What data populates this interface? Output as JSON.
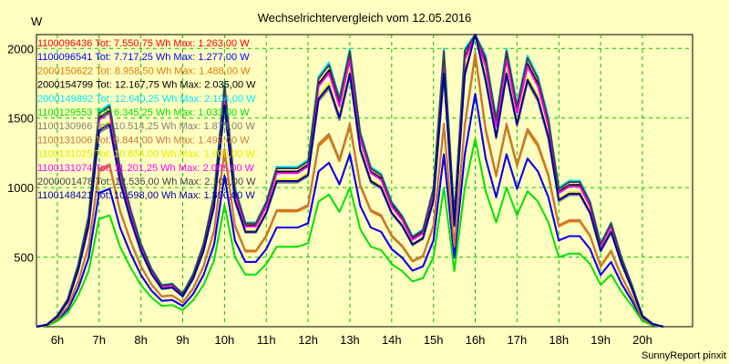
{
  "chart_data": {
    "type": "line",
    "title": "Wechselrichtervergleich vom 12.05.2016",
    "unit_label": "W",
    "footer": "SunnyReport pinxit",
    "ylim": [
      0,
      2100
    ],
    "yticks": [
      {
        "value": 500,
        "label": "500"
      },
      {
        "value": 1000,
        "label": "1000"
      },
      {
        "value": 1500,
        "label": "1500"
      },
      {
        "value": 2000,
        "label": "2000"
      }
    ],
    "xlim": [
      5.5,
      21.2
    ],
    "xticks": [
      {
        "value": 6,
        "label": "6h"
      },
      {
        "value": 7,
        "label": "7h"
      },
      {
        "value": 8,
        "label": "8h"
      },
      {
        "value": 9,
        "label": "9h"
      },
      {
        "value": 10,
        "label": "10h"
      },
      {
        "value": 11,
        "label": "11h"
      },
      {
        "value": 12,
        "label": "12h"
      },
      {
        "value": 13,
        "label": "13h"
      },
      {
        "value": 14,
        "label": "14h"
      },
      {
        "value": 15,
        "label": "15h"
      },
      {
        "value": 16,
        "label": "16h"
      },
      {
        "value": 17,
        "label": "17h"
      },
      {
        "value": 18,
        "label": "18h"
      },
      {
        "value": 19,
        "label": "19h"
      },
      {
        "value": 20,
        "label": "20h"
      }
    ],
    "grid": true,
    "legend_position": "top-left",
    "x": [
      5.5,
      5.75,
      6.0,
      6.25,
      6.5,
      6.75,
      7.0,
      7.25,
      7.5,
      7.75,
      8.0,
      8.25,
      8.5,
      8.75,
      9.0,
      9.25,
      9.5,
      9.75,
      10.0,
      10.25,
      10.5,
      10.75,
      11.0,
      11.25,
      11.5,
      11.75,
      12.0,
      12.25,
      12.5,
      12.75,
      13.0,
      13.25,
      13.5,
      13.75,
      14.0,
      14.25,
      14.5,
      14.75,
      15.0,
      15.25,
      15.5,
      15.75,
      16.0,
      16.25,
      16.5,
      16.75,
      17.0,
      17.25,
      17.5,
      17.75,
      18.0,
      18.25,
      18.5,
      18.75,
      19.0,
      19.25,
      19.5,
      19.75,
      20.0,
      20.25,
      20.5
    ],
    "series": [
      {
        "name": "1100096436 Tot: 7.550,75 Wh Max: 1.263,00 W",
        "color": "#ff0000",
        "scale": 0.62,
        "values": [
          0,
          15,
          80,
          200,
          450,
          800,
          1550,
          1600,
          1150,
          850,
          600,
          420,
          300,
          310,
          240,
          380,
          600,
          950,
          1750,
          1000,
          750,
          750,
          900,
          1150,
          1150,
          1150,
          1200,
          1800,
          1900,
          1650,
          2000,
          1400,
          1150,
          1100,
          900,
          800,
          650,
          700,
          1000,
          2000,
          800,
          2000,
          2700,
          1950,
          1500,
          2000,
          1600,
          1950,
          1800,
          1500,
          1000,
          1050,
          1050,
          900,
          600,
          750,
          500,
          300,
          80,
          20,
          0
        ]
      },
      {
        "name": "1100096541 Tot: 7.717,25 Wh Max: 1.277,00 W",
        "color": "#0000ff",
        "scale": 0.62,
        "values": [
          0,
          15,
          80,
          200,
          450,
          800,
          1550,
          1600,
          1150,
          850,
          600,
          420,
          300,
          310,
          240,
          380,
          600,
          950,
          1750,
          1000,
          750,
          750,
          900,
          1150,
          1150,
          1150,
          1200,
          1800,
          1900,
          1650,
          2000,
          1400,
          1150,
          1100,
          900,
          800,
          650,
          700,
          1000,
          2000,
          800,
          2000,
          2700,
          1950,
          1500,
          2000,
          1600,
          1950,
          1800,
          1500,
          1000,
          1050,
          1050,
          900,
          600,
          750,
          500,
          300,
          80,
          20,
          0
        ]
      },
      {
        "name": "2000150622 Tot: 8.958,50 Wh Max: 1.488,00 W",
        "color": "#e07800",
        "scale": 0.72,
        "values": [
          0,
          15,
          80,
          200,
          450,
          800,
          1550,
          1600,
          1150,
          850,
          600,
          420,
          300,
          310,
          240,
          380,
          600,
          950,
          1750,
          1000,
          750,
          750,
          900,
          1150,
          1150,
          1150,
          1200,
          1800,
          1900,
          1650,
          2000,
          1400,
          1150,
          1100,
          900,
          800,
          650,
          700,
          1000,
          2000,
          800,
          2000,
          2700,
          1950,
          1500,
          2000,
          1600,
          1950,
          1800,
          1500,
          1000,
          1050,
          1050,
          900,
          600,
          750,
          500,
          300,
          80,
          20,
          0
        ]
      },
      {
        "name": "2000154799 Tot: 12.167,75 Wh Max: 2.035,00 W",
        "color": "#000000",
        "scale": 0.97,
        "values": [
          0,
          15,
          80,
          200,
          450,
          800,
          1550,
          1600,
          1150,
          850,
          600,
          420,
          300,
          310,
          240,
          380,
          600,
          950,
          1750,
          1000,
          750,
          750,
          900,
          1150,
          1150,
          1150,
          1200,
          1800,
          1900,
          1650,
          2000,
          1400,
          1150,
          1100,
          900,
          800,
          650,
          700,
          1000,
          2000,
          800,
          2000,
          2700,
          1950,
          1500,
          2000,
          1600,
          1950,
          1800,
          1500,
          1000,
          1050,
          1050,
          900,
          600,
          750,
          500,
          300,
          80,
          20,
          0
        ]
      },
      {
        "name": "2000149892 Tot: 12.640,25 Wh Max: 2.104,00 W",
        "color": "#00e0ff",
        "scale": 1.0,
        "values": [
          0,
          15,
          80,
          200,
          450,
          800,
          1550,
          1600,
          1150,
          850,
          600,
          420,
          300,
          310,
          240,
          380,
          600,
          950,
          1750,
          1000,
          750,
          750,
          900,
          1150,
          1150,
          1150,
          1200,
          1800,
          1900,
          1650,
          2000,
          1400,
          1150,
          1100,
          900,
          800,
          650,
          700,
          1000,
          2000,
          800,
          2000,
          2700,
          1950,
          1500,
          2000,
          1600,
          1950,
          1800,
          1500,
          1000,
          1050,
          1050,
          900,
          600,
          750,
          500,
          300,
          80,
          20,
          0
        ]
      },
      {
        "name": "1100129553 Tot: 6.345,25 Wh Max: 1.033,00 W",
        "color": "#00e000",
        "scale": 0.5,
        "values": [
          0,
          15,
          80,
          200,
          450,
          800,
          1550,
          1600,
          1150,
          850,
          600,
          420,
          300,
          310,
          240,
          380,
          600,
          950,
          1750,
          1000,
          750,
          750,
          900,
          1150,
          1150,
          1150,
          1200,
          1800,
          1900,
          1650,
          2000,
          1400,
          1150,
          1100,
          900,
          800,
          650,
          700,
          1000,
          2000,
          800,
          2000,
          2700,
          1950,
          1500,
          2000,
          1600,
          1950,
          1800,
          1500,
          1000,
          1050,
          1050,
          900,
          600,
          750,
          500,
          300,
          80,
          20,
          0
        ]
      },
      {
        "name": "1100130966 Tot: 10.514,25 Wh Max: 1.873,00 W",
        "color": "#808080",
        "scale": 0.9,
        "values": [
          0,
          15,
          80,
          200,
          450,
          800,
          1550,
          1600,
          1150,
          850,
          600,
          420,
          300,
          310,
          240,
          380,
          600,
          950,
          1750,
          1000,
          750,
          750,
          900,
          1150,
          1150,
          1150,
          1200,
          1800,
          1900,
          1650,
          2000,
          1400,
          1150,
          1100,
          900,
          800,
          650,
          700,
          1000,
          2000,
          800,
          2000,
          2700,
          1950,
          1500,
          2000,
          1600,
          1950,
          1800,
          1500,
          1000,
          1050,
          1050,
          900,
          600,
          750,
          500,
          300,
          80,
          20,
          0
        ]
      },
      {
        "name": "1100131006 Tot: 9.844,00 Wh Max: 1.499,00 W",
        "color": "#c87838",
        "scale": 0.73,
        "values": [
          0,
          15,
          80,
          200,
          450,
          800,
          1550,
          1600,
          1150,
          850,
          600,
          420,
          300,
          310,
          240,
          380,
          600,
          950,
          1750,
          1000,
          750,
          750,
          900,
          1150,
          1150,
          1150,
          1200,
          1800,
          1900,
          1650,
          2000,
          1400,
          1150,
          1100,
          900,
          800,
          650,
          700,
          1000,
          2000,
          800,
          2000,
          2700,
          1950,
          1500,
          2000,
          1600,
          1950,
          1800,
          1500,
          1000,
          1050,
          1050,
          900,
          600,
          750,
          500,
          300,
          80,
          20,
          0
        ]
      },
      {
        "name": "1100131025 Tot: 10.654,00 Wh Max: 1.906,00 W",
        "color": "#e8e800",
        "scale": 0.92,
        "values": [
          0,
          15,
          80,
          200,
          450,
          800,
          1550,
          1600,
          1150,
          850,
          600,
          420,
          300,
          310,
          240,
          380,
          600,
          950,
          1750,
          1000,
          750,
          750,
          900,
          1150,
          1150,
          1150,
          1200,
          1800,
          1900,
          1650,
          2000,
          1400,
          1150,
          1100,
          900,
          800,
          650,
          700,
          1000,
          2000,
          800,
          2000,
          2700,
          1950,
          1500,
          2000,
          1600,
          1950,
          1800,
          1500,
          1000,
          1050,
          1050,
          900,
          600,
          750,
          500,
          300,
          80,
          20,
          0
        ]
      },
      {
        "name": "1100131074 Tot: 11.201,25 Wh Max: 2.005,00 W",
        "color": "#ff00ff",
        "scale": 0.96,
        "values": [
          0,
          15,
          80,
          200,
          450,
          800,
          1550,
          1600,
          1150,
          850,
          600,
          420,
          300,
          310,
          240,
          380,
          600,
          950,
          1750,
          1000,
          750,
          750,
          900,
          1150,
          1150,
          1150,
          1200,
          1800,
          1900,
          1650,
          2000,
          1400,
          1150,
          1100,
          900,
          800,
          650,
          700,
          1000,
          2000,
          800,
          2000,
          2700,
          1950,
          1500,
          2000,
          1600,
          1950,
          1800,
          1500,
          1000,
          1050,
          1050,
          900,
          600,
          750,
          500,
          300,
          80,
          20,
          0
        ]
      },
      {
        "name": "2000001478 Tot: 12.535,00 Wh Max: 2.101,00 W",
        "color": "#404040",
        "scale": 0.99,
        "values": [
          0,
          15,
          80,
          200,
          450,
          800,
          1550,
          1600,
          1150,
          850,
          600,
          420,
          300,
          310,
          240,
          380,
          600,
          950,
          1750,
          1000,
          750,
          750,
          900,
          1150,
          1150,
          1150,
          1200,
          1800,
          1900,
          1650,
          2000,
          1400,
          1150,
          1100,
          900,
          800,
          650,
          700,
          1000,
          2000,
          800,
          2000,
          2700,
          1950,
          1500,
          2000,
          1600,
          1950,
          1800,
          1500,
          1000,
          1050,
          1050,
          900,
          600,
          750,
          500,
          300,
          80,
          20,
          0
        ]
      },
      {
        "name": "1100148421 Tot: 10.598,00 Wh Max: 1.890,00 W",
        "color": "#0000a0",
        "scale": 0.91,
        "values": [
          0,
          15,
          80,
          200,
          450,
          800,
          1550,
          1600,
          1150,
          850,
          600,
          420,
          300,
          310,
          240,
          380,
          600,
          950,
          1750,
          1000,
          750,
          750,
          900,
          1150,
          1150,
          1150,
          1200,
          1800,
          1900,
          1650,
          2000,
          1400,
          1150,
          1100,
          900,
          800,
          650,
          700,
          1000,
          2000,
          800,
          2000,
          2700,
          1950,
          1500,
          2000,
          1600,
          1950,
          1800,
          1500,
          1000,
          1050,
          1050,
          900,
          600,
          750,
          500,
          300,
          80,
          20,
          0
        ]
      }
    ]
  }
}
